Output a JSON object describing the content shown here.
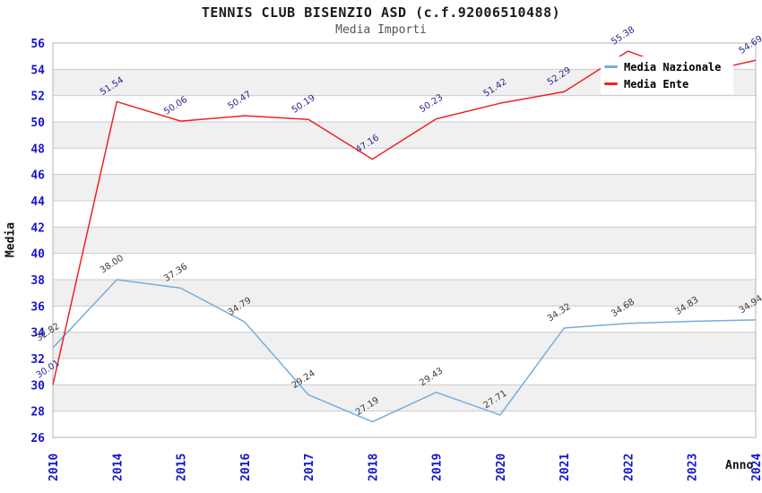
{
  "header": {
    "title": "TENNIS CLUB BISENZIO ASD (c.f.92006510488)",
    "subtitle": "Media Importi"
  },
  "chart_data": {
    "type": "line",
    "x": [
      "2010",
      "2014",
      "2015",
      "2016",
      "2017",
      "2018",
      "2019",
      "2020",
      "2021",
      "2022",
      "2023",
      "2024"
    ],
    "series": [
      {
        "name": "Media Nazionale",
        "color": "#74ade0",
        "label_color": "#3a3a3a",
        "values": [
          32.82,
          38.0,
          37.36,
          34.79,
          29.24,
          27.19,
          29.43,
          27.71,
          34.32,
          34.68,
          34.83,
          34.94
        ],
        "labels": [
          "32.82",
          "38.00",
          "37.36",
          "34.79",
          "29.24",
          "27.19",
          "29.43",
          "27.71",
          "34.32",
          "34.68",
          "34.83",
          "34.94"
        ]
      },
      {
        "name": "Media Ente",
        "color": "#ee2222",
        "label_color": "#2a2a8f",
        "values": [
          30.01,
          51.54,
          50.06,
          50.47,
          50.19,
          47.16,
          50.23,
          51.42,
          52.29,
          55.38,
          53.6,
          54.69
        ],
        "labels": [
          "30.01",
          "51.54",
          "50.06",
          "50.47",
          "50.19",
          "47.16",
          "50.23",
          "51.42",
          "52.29",
          "55.38",
          "",
          "54.69"
        ]
      }
    ],
    "xlabel": "Anno",
    "ylabel": "Media",
    "ylim": [
      26,
      56
    ],
    "ytick_step": 2,
    "grid": "horizontal-bands",
    "legend_position": "top-right"
  },
  "colors": {
    "tick_label": "#1515cc",
    "band": "#f0f0f0",
    "gridline": "#cccccc",
    "plot_border": "#b3b3b3",
    "legend_bg": "#ffffff"
  }
}
